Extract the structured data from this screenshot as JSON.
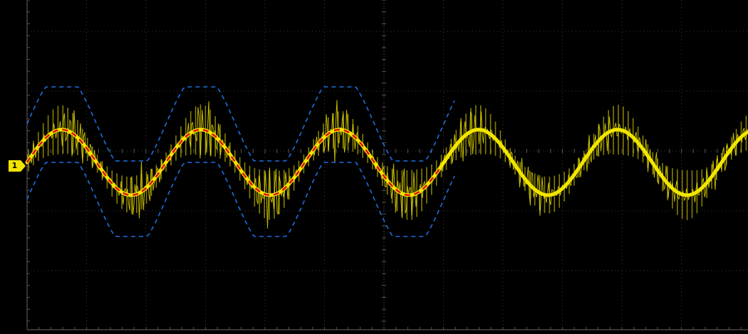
{
  "screen": {
    "background_color": "#000000",
    "grid_color": "#3a3a3a",
    "divisions": {
      "horizontal": 12,
      "vertical": 8
    }
  },
  "channel": {
    "label": "1",
    "color": "#f2e600",
    "marker_icon": "channel-1-ground-marker"
  },
  "waveform": {
    "description_icon": "am-modulated-burst-waveform",
    "carrier_bursts_per_cycle": 14,
    "envelope_cycles_visible": 5
  },
  "overlays": {
    "fit_curve_color": "#e01010",
    "envelope_color": "#1e6fe0"
  }
}
